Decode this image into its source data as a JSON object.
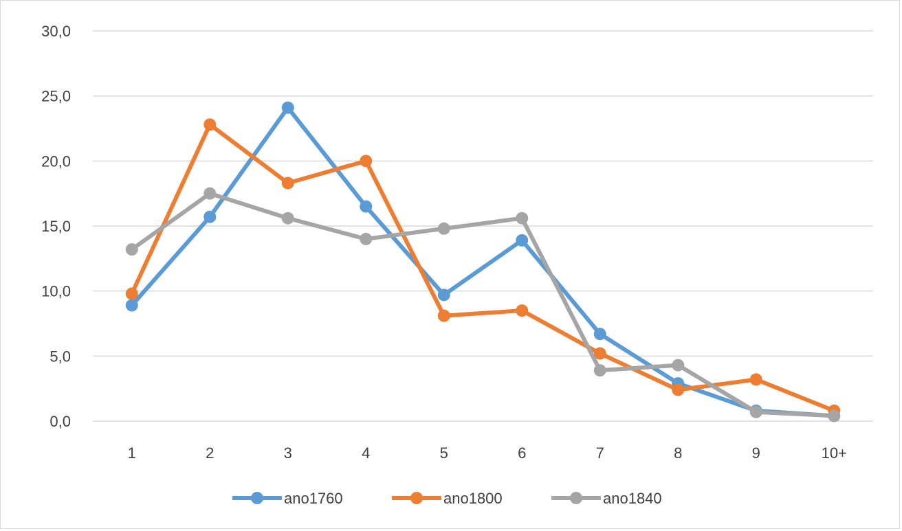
{
  "chart_data": {
    "type": "line",
    "categories": [
      "1",
      "2",
      "3",
      "4",
      "5",
      "6",
      "7",
      "8",
      "9",
      "10+"
    ],
    "y_tick_labels": [
      "0,0",
      "5,0",
      "10,0",
      "15,0",
      "20,0",
      "25,0",
      "30,0"
    ],
    "ylim": [
      0,
      30
    ],
    "grid": true,
    "legend_position": "bottom",
    "series": [
      {
        "name": "ano1760",
        "color": "#5B9BD5",
        "values": [
          8.9,
          15.7,
          24.1,
          16.5,
          9.7,
          13.9,
          6.7,
          2.9,
          0.8,
          0.4
        ]
      },
      {
        "name": "ano1800",
        "color": "#ED7D31",
        "values": [
          9.8,
          22.8,
          18.3,
          20.0,
          8.1,
          8.5,
          5.2,
          2.4,
          3.2,
          0.8
        ]
      },
      {
        "name": "ano1840",
        "color": "#A5A5A5",
        "values": [
          13.2,
          17.5,
          15.6,
          14.0,
          14.8,
          15.6,
          3.9,
          4.3,
          0.7,
          0.4
        ]
      }
    ]
  }
}
